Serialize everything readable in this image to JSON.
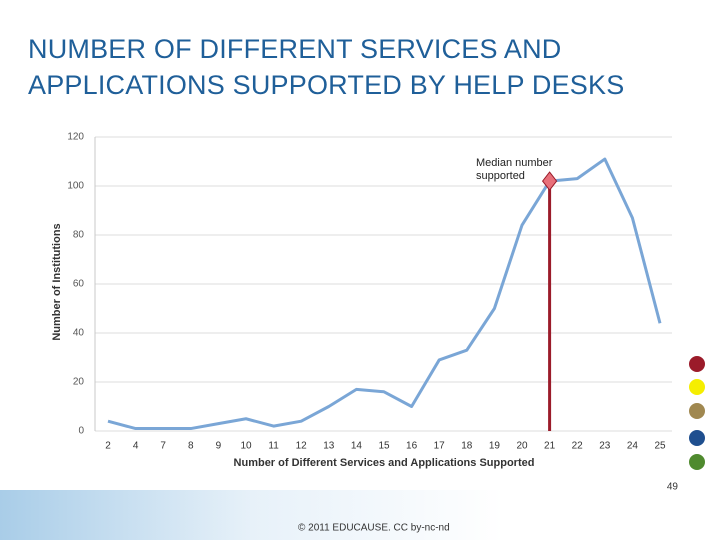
{
  "slide": {
    "title_lines": [
      "NUMBER OF DIFFERENT SERVICES AND",
      "APPLICATIONS SUPPORTED BY HELP DESKS"
    ],
    "footer": "© 2011 EDUCAUSE. CC by-nc-nd",
    "page_number": "49"
  },
  "chart_data": {
    "type": "line",
    "x_label": "Number of Different Services and Applications Supported",
    "y_label": "Number of Institutions",
    "categories": [
      2,
      4,
      7,
      8,
      9,
      10,
      11,
      12,
      13,
      14,
      15,
      16,
      17,
      18,
      19,
      20,
      21,
      22,
      23,
      24,
      25
    ],
    "values": [
      4,
      1,
      1,
      1,
      3,
      5,
      2,
      4,
      10,
      17,
      16,
      10,
      29,
      33,
      50,
      84,
      102,
      103,
      111,
      87,
      44
    ],
    "color": "#7aa6d6",
    "ylim": [
      0,
      120
    ],
    "yticks": [
      0,
      20,
      40,
      60,
      80,
      100,
      120
    ],
    "grid": true,
    "median": 21,
    "median_label": "Median number supported",
    "median_color": "#9b1b2a"
  }
}
